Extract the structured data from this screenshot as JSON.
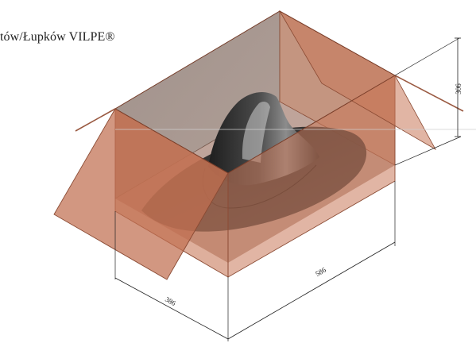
{
  "caption": "tów/Łupków VILPE®",
  "dimensions": {
    "height": "306",
    "length": "586",
    "width": "386"
  },
  "colors": {
    "box": "#c8795a",
    "box_edge": "#8a4a33",
    "product": "#2b2b2b",
    "dimension_line": "#222222"
  }
}
